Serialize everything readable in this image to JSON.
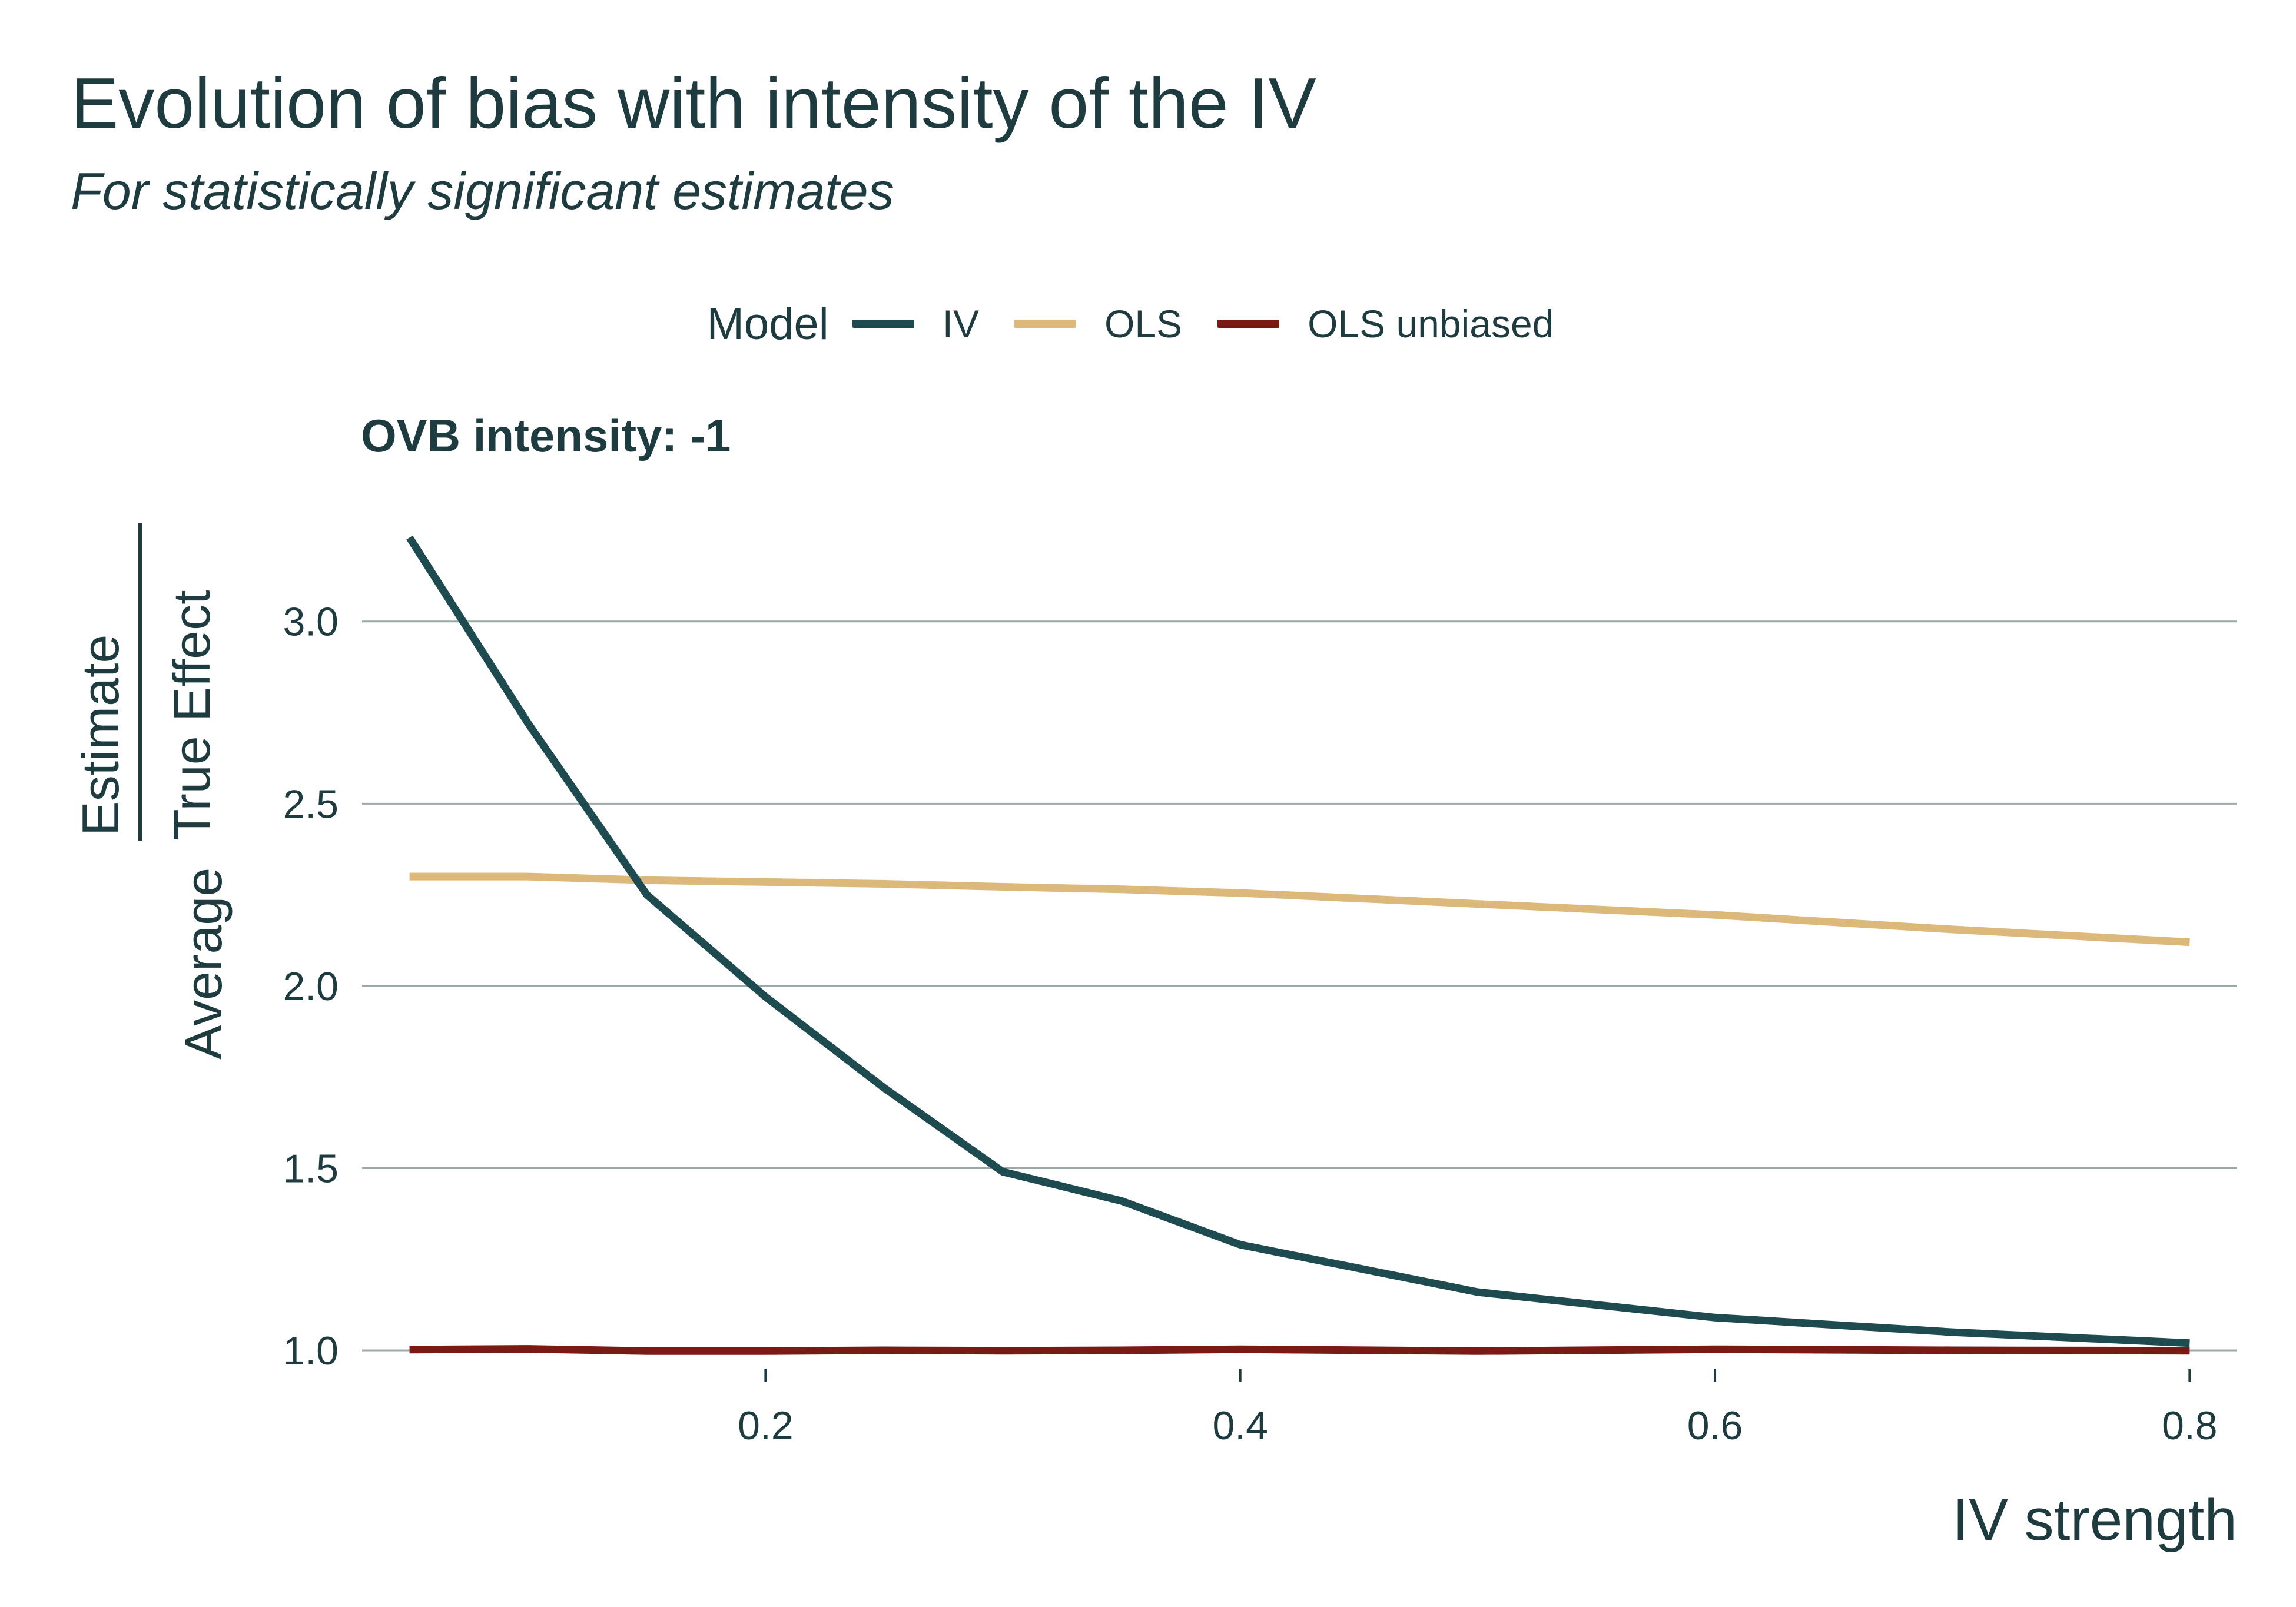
{
  "chart_data": {
    "type": "line",
    "title": "Evolution of bias with intensity of the IV",
    "subtitle": "For statistically significant estimates",
    "facet_label": "OVB intensity: -1",
    "xlabel": "IV strength",
    "ylabel": {
      "prefix": "Average",
      "numerator": "Estimate",
      "denominator": "True Effect"
    },
    "legend": {
      "title": "Model",
      "placement": "top-center"
    },
    "xlim": [
      0.03,
      0.82
    ],
    "ylim": [
      0.95,
      3.3
    ],
    "x_ticks": [
      0.2,
      0.4,
      0.6,
      0.8
    ],
    "x_tick_labels": [
      "0.2",
      "0.4",
      "0.6",
      "0.8"
    ],
    "y_ticks": [
      1.0,
      1.5,
      2.0,
      2.5,
      3.0
    ],
    "y_tick_labels": [
      "1.0",
      "1.5",
      "2.0",
      "2.5",
      "3.0"
    ],
    "grid": "horizontal",
    "x": [
      0.05,
      0.1,
      0.15,
      0.2,
      0.25,
      0.3,
      0.35,
      0.4,
      0.5,
      0.6,
      0.7,
      0.8
    ],
    "series": [
      {
        "name": "IV",
        "color": "#1e4b4f",
        "values": [
          3.23,
          2.72,
          2.25,
          1.97,
          1.72,
          1.49,
          1.41,
          1.29,
          1.16,
          1.09,
          1.05,
          1.02
        ]
      },
      {
        "name": "OLS",
        "color": "#dcb87a",
        "values": [
          2.3,
          2.3,
          2.29,
          2.285,
          2.28,
          2.272,
          2.265,
          2.255,
          2.225,
          2.195,
          2.155,
          2.12
        ]
      },
      {
        "name": "OLS unbiased",
        "color": "#7a1a14",
        "values": [
          1.002,
          1.004,
          0.998,
          0.998,
          1.0,
          0.999,
          1.0,
          1.003,
          0.998,
          1.003,
          1.0,
          0.999
        ]
      }
    ]
  }
}
